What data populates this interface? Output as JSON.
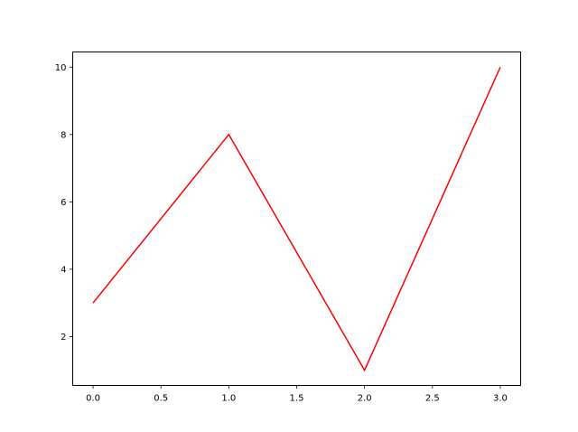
{
  "chart_data": {
    "type": "line",
    "title": "",
    "xlabel": "",
    "ylabel": "",
    "x": [
      0,
      1,
      2,
      3
    ],
    "series": [
      {
        "values": [
          3,
          8,
          1,
          10
        ],
        "color": "#ff0000"
      }
    ],
    "xlim": [
      -0.15,
      3.15
    ],
    "ylim": [
      0.55,
      10.45
    ],
    "xticks": [
      "0.0",
      "0.5",
      "1.0",
      "1.5",
      "2.0",
      "2.5",
      "3.0"
    ],
    "yticks": [
      "2",
      "4",
      "6",
      "8",
      "10"
    ],
    "grid": false,
    "legend": "none"
  }
}
